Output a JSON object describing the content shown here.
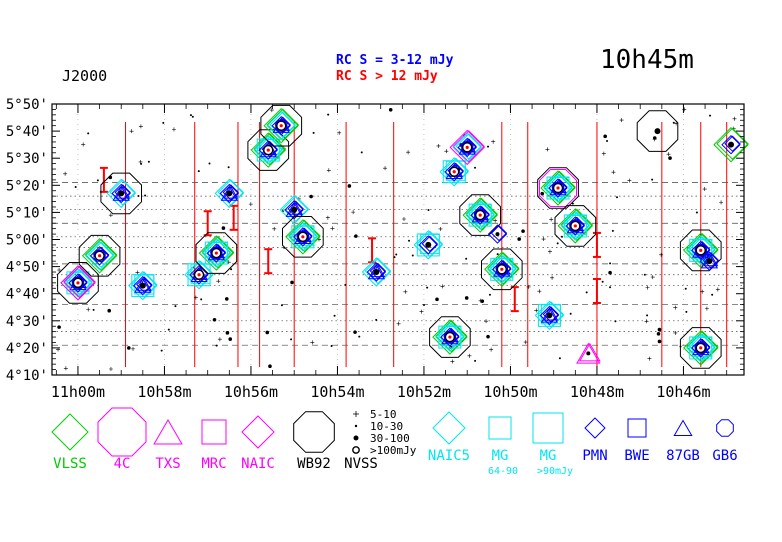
{
  "header": {
    "epoch": "J2000",
    "title": "10h45m",
    "legend_line_blue": "RC S = 3-12 mJy",
    "legend_line_red": "RC S > 12 mJy"
  },
  "colors": {
    "vlss": "#00cc00",
    "magenta": "#ff00ff",
    "black": "#000000",
    "cyan": "#00e5ee",
    "blue": "#0000ff",
    "red": "#ff0000",
    "grid": "#444444"
  },
  "chart_data": {
    "type": "scatter",
    "title": "10h45m",
    "epoch": "J2000",
    "x_axis": {
      "quantity": "right ascension (hours, minutes)",
      "range_minutes": [
        44.6,
        60.6
      ],
      "direction": "decreasing to the right",
      "tick_labels": [
        {
          "min": 60,
          "text": "11h00m"
        },
        {
          "min": 58,
          "text": "10h58m"
        },
        {
          "min": 56,
          "text": "10h56m"
        },
        {
          "min": 54,
          "text": "10h54m"
        },
        {
          "min": 52,
          "text": "10h52m"
        },
        {
          "min": 50,
          "text": "10h50m"
        },
        {
          "min": 48,
          "text": "10h48m"
        },
        {
          "min": 46,
          "text": "10h46m"
        }
      ]
    },
    "y_axis": {
      "quantity": "declination (arcmin above 4°00')",
      "range_arcmin": [
        10,
        110
      ],
      "tick_labels": [
        {
          "arcmin": 110,
          "text": "5°50'"
        },
        {
          "arcmin": 100,
          "text": "5°40'"
        },
        {
          "arcmin": 90,
          "text": "5°30'"
        },
        {
          "arcmin": 80,
          "text": "5°20'"
        },
        {
          "arcmin": 70,
          "text": "5°10'"
        },
        {
          "arcmin": 60,
          "text": "5°00'"
        },
        {
          "arcmin": 50,
          "text": "4°50'"
        },
        {
          "arcmin": 40,
          "text": "4°40'"
        },
        {
          "arcmin": 30,
          "text": "4°30'"
        },
        {
          "arcmin": 20,
          "text": "4°20'"
        },
        {
          "arcmin": 10,
          "text": "4°10'"
        }
      ]
    },
    "scan_lines_arcmin": [
      21,
      26,
      30,
      36,
      43,
      47,
      51,
      57,
      61,
      66,
      71,
      76,
      81
    ],
    "sources": [
      {
        "ra": 60.0,
        "dec": 44,
        "catalogs": [
          "VLSS",
          "WB92",
          "NAIC5",
          "MG",
          "PMN",
          "87GB",
          "GB6",
          "NAIC"
        ],
        "nvss": 4
      },
      {
        "ra": 59.5,
        "dec": 54,
        "catalogs": [
          "VLSS",
          "WB92",
          "NAIC5",
          "PMN",
          "GB6"
        ],
        "nvss": 4
      },
      {
        "ra": 59.0,
        "dec": 77,
        "catalogs": [
          "WB92",
          "NAIC5",
          "PMN",
          "87GB"
        ],
        "nvss": 3
      },
      {
        "ra": 58.5,
        "dec": 43,
        "catalogs": [
          "NAIC5",
          "MG",
          "PMN",
          "87GB"
        ],
        "nvss": 3
      },
      {
        "ra": 57.2,
        "dec": 47,
        "catalogs": [
          "NAIC5",
          "MG",
          "PMN",
          "87GB"
        ],
        "nvss": 4
      },
      {
        "ra": 56.8,
        "dec": 55,
        "catalogs": [
          "VLSS",
          "WB92",
          "NAIC5",
          "MG",
          "PMN",
          "87GB",
          "GB6"
        ],
        "nvss": 4
      },
      {
        "ra": 56.5,
        "dec": 77,
        "catalogs": [
          "NAIC5",
          "PMN",
          "87GB"
        ],
        "nvss": 3
      },
      {
        "ra": 55.6,
        "dec": 93,
        "catalogs": [
          "VLSS",
          "WB92",
          "NAIC5",
          "MG",
          "PMN",
          "87GB"
        ],
        "nvss": 4
      },
      {
        "ra": 55.3,
        "dec": 102,
        "catalogs": [
          "VLSS",
          "WB92",
          "NAIC5",
          "PMN",
          "87GB",
          "GB6"
        ],
        "nvss": 4
      },
      {
        "ra": 55.0,
        "dec": 71,
        "catalogs": [
          "NAIC5",
          "PMN",
          "87GB"
        ],
        "nvss": 3
      },
      {
        "ra": 54.8,
        "dec": 61,
        "catalogs": [
          "VLSS",
          "WB92",
          "NAIC5",
          "MG",
          "PMN",
          "87GB",
          "GB6"
        ],
        "nvss": 4
      },
      {
        "ra": 53.1,
        "dec": 48,
        "catalogs": [
          "NAIC5",
          "PMN",
          "87GB"
        ],
        "nvss": 3
      },
      {
        "ra": 51.9,
        "dec": 58,
        "catalogs": [
          "MG",
          "NAIC5",
          "PMN"
        ],
        "nvss": 3
      },
      {
        "ra": 51.4,
        "dec": 24,
        "catalogs": [
          "VLSS",
          "WB92",
          "NAIC5",
          "MG",
          "PMN",
          "87GB",
          "GB6"
        ],
        "nvss": 4
      },
      {
        "ra": 51.3,
        "dec": 85,
        "catalogs": [
          "NAIC5",
          "MG",
          "PMN",
          "87GB"
        ],
        "nvss": 4
      },
      {
        "ra": 51.0,
        "dec": 94,
        "catalogs": [
          "NAIC",
          "NAIC5",
          "PMN",
          "87GB",
          "GB6"
        ],
        "nvss": 4
      },
      {
        "ra": 50.7,
        "dec": 69,
        "catalogs": [
          "VLSS",
          "WB92",
          "NAIC5",
          "MG",
          "PMN",
          "87GB",
          "GB6"
        ],
        "nvss": 4
      },
      {
        "ra": 50.3,
        "dec": 62,
        "catalogs": [
          "PMN"
        ],
        "nvss": 2
      },
      {
        "ra": 50.2,
        "dec": 49,
        "catalogs": [
          "VLSS",
          "WB92",
          "NAIC5",
          "MG",
          "PMN",
          "87GB",
          "GB6"
        ],
        "nvss": 4
      },
      {
        "ra": 49.1,
        "dec": 32,
        "catalogs": [
          "NAIC5",
          "MG",
          "PMN",
          "87GB"
        ],
        "nvss": 3
      },
      {
        "ra": 48.9,
        "dec": 79,
        "catalogs": [
          "VLSS",
          "WB92",
          "NAIC5",
          "MG",
          "PMN",
          "87GB",
          "GB6",
          "4C"
        ],
        "nvss": 4
      },
      {
        "ra": 48.5,
        "dec": 65,
        "catalogs": [
          "WB92",
          "VLSS",
          "NAIC5",
          "MG",
          "PMN",
          "87GB",
          "GB6"
        ],
        "nvss": 4
      },
      {
        "ra": 48.2,
        "dec": 18,
        "catalogs": [
          "TXS"
        ],
        "nvss": 2
      },
      {
        "ra": 46.6,
        "dec": 100,
        "catalogs": [
          "WB92"
        ],
        "nvss": 3
      },
      {
        "ra": 45.6,
        "dec": 56,
        "catalogs": [
          "VLSS",
          "WB92",
          "NAIC5",
          "MG",
          "PMN",
          "87GB",
          "GB6"
        ],
        "nvss": 4
      },
      {
        "ra": 45.6,
        "dec": 20,
        "catalogs": [
          "VLSS",
          "WB92",
          "NAIC5",
          "MG",
          "PMN",
          "87GB",
          "GB6"
        ],
        "nvss": 4
      },
      {
        "ra": 45.4,
        "dec": 52,
        "catalogs": [
          "PMN",
          "87GB"
        ],
        "nvss": 3
      },
      {
        "ra": 44.9,
        "dec": 95,
        "catalogs": [
          "VLSS",
          "PMN"
        ],
        "nvss": 3
      }
    ],
    "legend": {
      "symbols": [
        {
          "name": "VLSS",
          "shape": "diamond",
          "color": "green"
        },
        {
          "name": "4C",
          "shape": "octagon",
          "color": "magenta"
        },
        {
          "name": "TXS",
          "shape": "triangle",
          "color": "magenta"
        },
        {
          "name": "MRC",
          "shape": "square",
          "color": "magenta"
        },
        {
          "name": "NAIC",
          "shape": "diamond",
          "color": "magenta"
        },
        {
          "name": "WB92",
          "shape": "octagon",
          "color": "black"
        },
        {
          "name": "NAIC5",
          "shape": "diamond",
          "color": "cyan"
        },
        {
          "name": "MG",
          "shape": "square",
          "color": "cyan",
          "note": "64-90"
        },
        {
          "name": "MG",
          "shape": "square-large",
          "color": "cyan",
          "note": ">90mJy"
        },
        {
          "name": "PMN",
          "shape": "diamond",
          "color": "blue"
        },
        {
          "name": "BWE",
          "shape": "square",
          "color": "blue"
        },
        {
          "name": "87GB",
          "shape": "triangle",
          "color": "blue"
        },
        {
          "name": "GB6",
          "shape": "octagon",
          "color": "blue"
        }
      ],
      "nvss": [
        "5-10",
        "10-30",
        "30-100",
        ">100mJy"
      ],
      "nvss_title": "NVSS",
      "mg_notes": [
        "64-90",
        ">90mJy"
      ]
    }
  }
}
